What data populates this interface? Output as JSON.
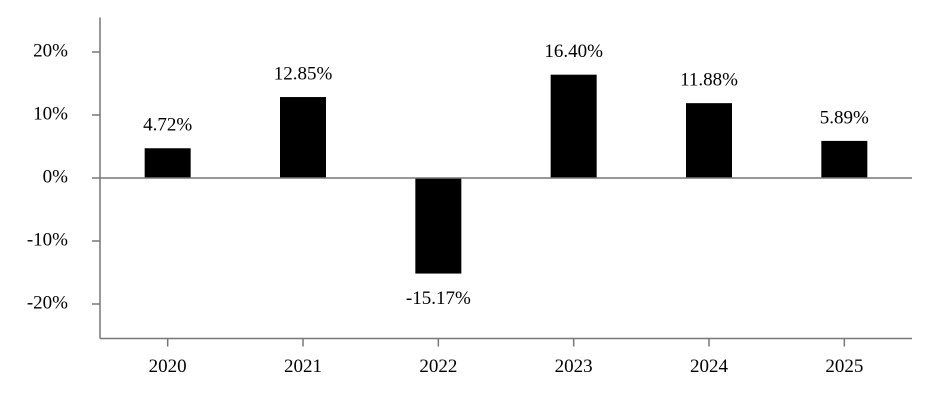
{
  "chart_data": {
    "type": "bar",
    "categories": [
      "2020",
      "2021",
      "2022",
      "2023",
      "2024",
      "2025"
    ],
    "values": [
      4.72,
      12.85,
      -15.17,
      16.4,
      11.88,
      5.89
    ],
    "value_labels": [
      "4.72%",
      "12.85%",
      "-15.17%",
      "16.40%",
      "11.88%",
      "5.89%"
    ],
    "color": "#000000",
    "ylim": [
      -25,
      25
    ],
    "yticks": [
      {
        "value": -20,
        "label": "-20%"
      },
      {
        "value": -10,
        "label": "-10%"
      },
      {
        "value": 0,
        "label": "0%"
      },
      {
        "value": 10,
        "label": "10%"
      },
      {
        "value": 20,
        "label": "20%"
      }
    ],
    "grid": false
  }
}
